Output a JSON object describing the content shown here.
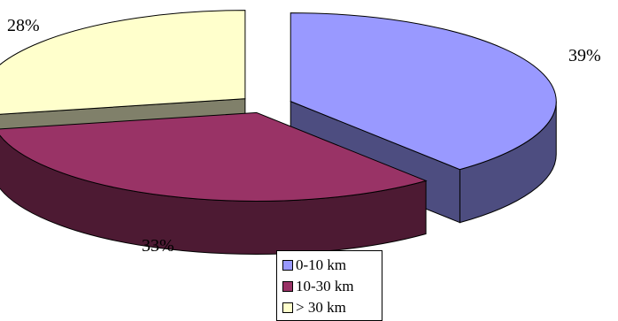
{
  "chart_data": {
    "type": "pie",
    "style": "3d-exploded",
    "title": "",
    "categories": [
      "0-10 km",
      "10-30 km",
      "> 30 km"
    ],
    "values": [
      39,
      33,
      28
    ],
    "labels": [
      "39%",
      "33%",
      "28%"
    ],
    "legend_position": "bottom",
    "colors": {
      "top": [
        "#9999ff",
        "#993366",
        "#ffffcc"
      ],
      "side": [
        "#4d4d80",
        "#4d1a33",
        "#80806a"
      ]
    }
  }
}
